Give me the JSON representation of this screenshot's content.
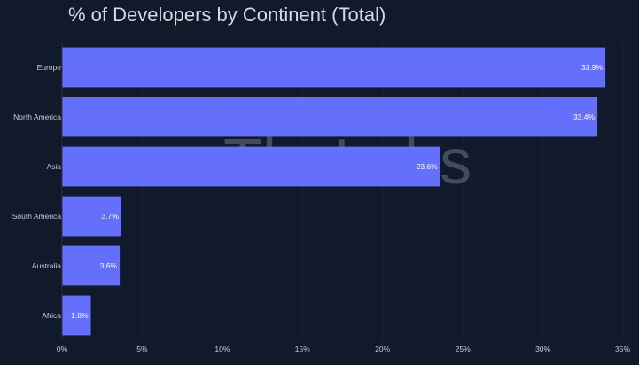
{
  "chart_data": {
    "type": "bar",
    "orientation": "horizontal",
    "title": "% of Developers by Continent (Total)",
    "xlabel": "",
    "ylabel": "",
    "categories": [
      "Europe",
      "North America",
      "Asia",
      "South America",
      "Australia",
      "Africa"
    ],
    "values": [
      33.9,
      33.4,
      23.6,
      3.7,
      3.6,
      1.8
    ],
    "data_labels": [
      "33.9%",
      "33.4%",
      "23.6%",
      "3.7%",
      "3.6%",
      "1.8%"
    ],
    "xlim": [
      0,
      35
    ],
    "xticks": [
      0,
      5,
      10,
      15,
      20,
      25,
      30,
      35
    ],
    "xtick_labels": [
      "0%",
      "5%",
      "10%",
      "15%",
      "20%",
      "25%",
      "30%",
      "35%"
    ],
    "grid": true,
    "legend": "none",
    "bar_color": "#6470fb",
    "background_color": "#111a2b",
    "watermark": "TheLabs"
  }
}
